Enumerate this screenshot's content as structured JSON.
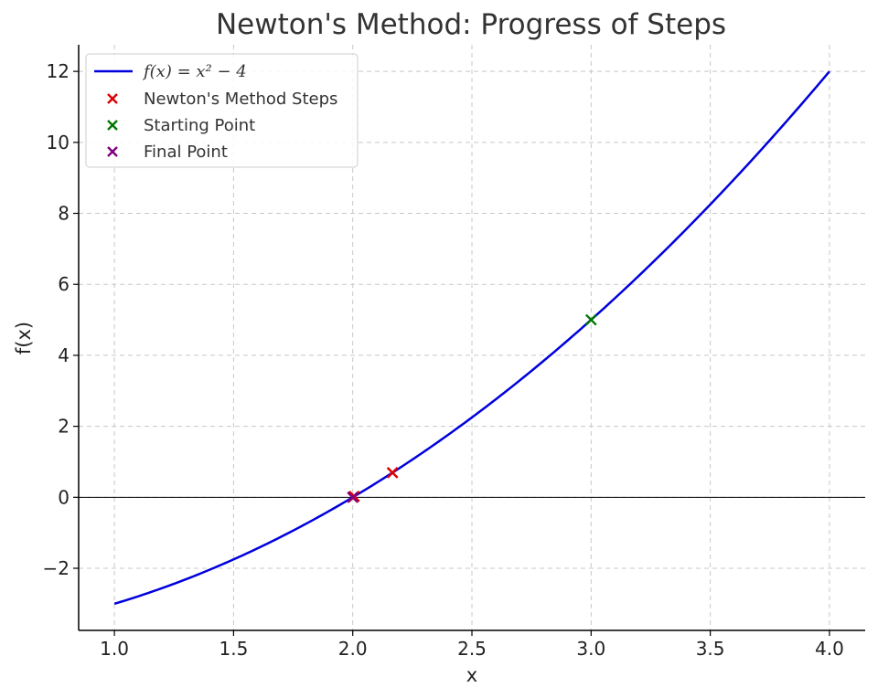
{
  "chart_data": {
    "type": "line",
    "title": "Newton's Method: Progress of Steps",
    "xlabel": "x",
    "ylabel": "f(x)",
    "xlim": [
      0.85,
      4.15
    ],
    "ylim": [
      -3.75,
      12.75
    ],
    "x_ticks": [
      1.0,
      1.5,
      2.0,
      2.5,
      3.0,
      3.5,
      4.0
    ],
    "x_tick_labels": [
      "1.0",
      "1.5",
      "2.0",
      "2.5",
      "3.0",
      "3.5",
      "4.0"
    ],
    "y_ticks": [
      -2,
      0,
      2,
      4,
      6,
      8,
      10,
      12
    ],
    "y_tick_labels": [
      "−2",
      "0",
      "2",
      "4",
      "6",
      "8",
      "10",
      "12"
    ],
    "grid": true,
    "legend_position": "top-left",
    "hline_y": 0,
    "function": {
      "legend_label": "f(x) = x² − 4",
      "color": "#0000dd",
      "x_range": [
        1.0,
        4.0
      ],
      "points": [
        [
          1.0,
          -3.0
        ],
        [
          1.25,
          -2.4375
        ],
        [
          1.5,
          -1.75
        ],
        [
          1.75,
          -0.9375
        ],
        [
          2.0,
          0.0
        ],
        [
          2.25,
          1.0625
        ],
        [
          2.5,
          2.25
        ],
        [
          2.75,
          3.5625
        ],
        [
          3.0,
          5.0
        ],
        [
          3.25,
          6.5625
        ],
        [
          3.5,
          8.25
        ],
        [
          3.75,
          10.0625
        ],
        [
          4.0,
          12.0
        ]
      ]
    },
    "series": [
      {
        "name": "Newton's Method Steps",
        "color": "#dd0000",
        "marker": "x",
        "points": [
          [
            2.1667,
            0.6944
          ],
          [
            2.0064,
            0.0257
          ],
          [
            2.0,
            0.0001
          ]
        ]
      },
      {
        "name": "Starting Point",
        "color": "#007700",
        "marker": "x",
        "points": [
          [
            3.0,
            5.0
          ]
        ]
      },
      {
        "name": "Final Point",
        "color": "#800080",
        "marker": "x",
        "points": [
          [
            2.0,
            0.0
          ]
        ]
      }
    ]
  }
}
